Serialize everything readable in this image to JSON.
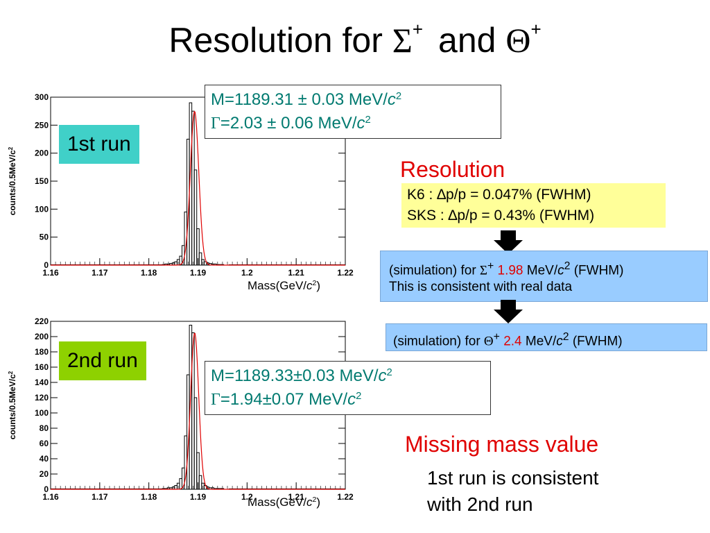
{
  "title": {
    "prefix": "Resolution for ",
    "sym1": "Σ",
    "sup1": "+",
    "and": "and ",
    "sym2": "Θ",
    "sup2": "+"
  },
  "plots": [
    {
      "run_label": "1st run",
      "ylabel": "counts/0.5MeV/c",
      "ylabel_sup": "2",
      "xlabel_pre": "Mass(GeV/",
      "xlabel_var": "c",
      "xlabel_sup": "2",
      "xlabel_post": ")",
      "fit": {
        "mass_line": "M=1189.31 ± 0.03 MeV/",
        "gamma_sym": "Γ",
        "gamma_line": "=2.03 ± 0.06 MeV/",
        "unit_var": "c",
        "unit_sup": "2"
      }
    },
    {
      "run_label": "2nd run",
      "ylabel": "counts/0.5MeV/c",
      "ylabel_sup": "2",
      "xlabel_pre": "Mass(GeV/",
      "xlabel_var": "c",
      "xlabel_sup": "2",
      "xlabel_post": ")",
      "fit": {
        "mass_line": "M=1189.33±0.03 MeV/",
        "gamma_sym": "Γ",
        "gamma_line": "=1.94±0.07 MeV/",
        "unit_var": "c",
        "unit_sup": "2"
      }
    }
  ],
  "resolution": {
    "heading": "Resolution",
    "k6_line": "K6  : ∆p/p = 0.047% (FWHM)",
    "sks_line": "SKS : ∆p/p = 0.43% (FWHM)"
  },
  "simulation": {
    "sigma": {
      "prefix": "(simulation) for ",
      "sym": "Σ",
      "sup": "+",
      "value": "1.98",
      "unit_pre": " MeV/",
      "unit_var": "c",
      "unit_sup": "2",
      "suffix": " (FWHM)",
      "line2": "This is consistent with real data"
    },
    "theta": {
      "prefix": "(simulation) for ",
      "sym": "Θ",
      "sup": "+",
      "value": "2.4",
      "unit_pre": " MeV/",
      "unit_var": "c",
      "unit_sup": "2",
      "suffix": " (FWHM)"
    }
  },
  "missing_mass": {
    "heading": "Missing mass value",
    "line1": "1st run is consistent",
    "line2": "with 2nd run"
  },
  "colors": {
    "fit_text": "#007a70",
    "red": "#e00000",
    "run1_bg": "#40d0c8",
    "run2_bg": "#8ed100",
    "resolution_bg": "#ffff99",
    "simulation_bg": "#99ccff",
    "histogram": "#000000",
    "fit_curve": "#e00000"
  },
  "chart_data": [
    {
      "type": "line",
      "xlim": [
        1.16,
        1.22
      ],
      "ylim": [
        0,
        300
      ],
      "xticks": [
        "1.16",
        "1.17",
        "1.18",
        "1.19",
        "1.2",
        "1.21",
        "1.22"
      ],
      "yticks": [
        "0",
        "50",
        "100",
        "150",
        "200",
        "250",
        "300"
      ],
      "ytick_values": [
        0,
        50,
        100,
        150,
        200,
        250,
        300
      ],
      "grid": false,
      "series": [
        {
          "kind": "histogram",
          "x": [
            1.183,
            1.1835,
            1.184,
            1.1845,
            1.185,
            1.1855,
            1.186,
            1.1865,
            1.187,
            1.1875,
            1.188,
            1.1885,
            1.189,
            1.1895,
            1.19,
            1.1905,
            1.191,
            1.1915,
            1.192,
            1.1925,
            1.193,
            1.1935,
            1.194,
            1.1945,
            1.195,
            1.1955,
            1.196
          ],
          "y": [
            1,
            2,
            2,
            3,
            4,
            6,
            10,
            16,
            35,
            95,
            225,
            290,
            275,
            170,
            65,
            22,
            10,
            6,
            4,
            3,
            2,
            2,
            1,
            1,
            1,
            0,
            0
          ]
        },
        {
          "kind": "fit",
          "mean": 1.18931,
          "sigma": 0.00086,
          "peak": 275
        }
      ]
    },
    {
      "type": "line",
      "xlim": [
        1.16,
        1.22
      ],
      "ylim": [
        0,
        220
      ],
      "xticks": [
        "1.16",
        "1.17",
        "1.18",
        "1.19",
        "1.2",
        "1.21",
        "1.22"
      ],
      "yticks": [
        "0",
        "20",
        "40",
        "60",
        "80",
        "100",
        "120",
        "140",
        "160",
        "180",
        "200",
        "220"
      ],
      "ytick_values": [
        0,
        20,
        40,
        60,
        80,
        100,
        120,
        140,
        160,
        180,
        200,
        220
      ],
      "grid": false,
      "series": [
        {
          "kind": "histogram",
          "x": [
            1.183,
            1.1835,
            1.184,
            1.1845,
            1.185,
            1.1855,
            1.186,
            1.1865,
            1.187,
            1.1875,
            1.188,
            1.1885,
            1.189,
            1.1895,
            1.19,
            1.1905,
            1.191,
            1.1915,
            1.192,
            1.1925,
            1.193,
            1.1935,
            1.194,
            1.1945,
            1.195,
            1.1955,
            1.196
          ],
          "y": [
            1,
            1,
            2,
            2,
            3,
            5,
            8,
            14,
            28,
            70,
            150,
            215,
            205,
            120,
            48,
            18,
            8,
            5,
            3,
            2,
            2,
            1,
            1,
            1,
            1,
            0,
            0
          ]
        },
        {
          "kind": "fit",
          "mean": 1.18933,
          "sigma": 0.00082,
          "peak": 205
        }
      ]
    }
  ]
}
